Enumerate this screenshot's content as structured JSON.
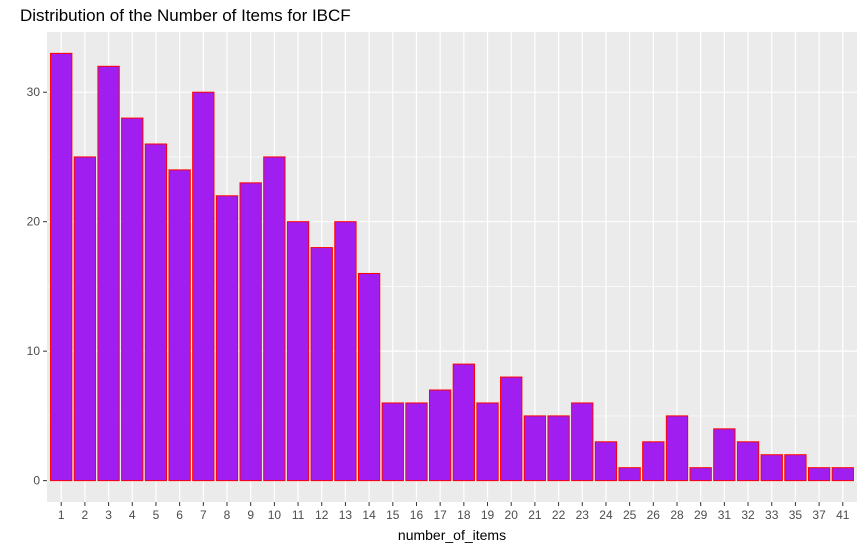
{
  "colors": {
    "panel_background": "#ebebeb",
    "grid": "#ffffff",
    "bar_fill": "#a01ff0",
    "bar_outline": "#ff0000"
  },
  "chart_data": {
    "type": "bar",
    "title": "Distribution of the Number of Items for IBCF",
    "xlabel": "number_of_items",
    "ylabel": "",
    "categories": [
      "1",
      "2",
      "3",
      "4",
      "5",
      "6",
      "7",
      "8",
      "9",
      "10",
      "11",
      "12",
      "13",
      "14",
      "15",
      "16",
      "17",
      "18",
      "19",
      "20",
      "21",
      "22",
      "23",
      "24",
      "25",
      "26",
      "28",
      "29",
      "31",
      "32",
      "33",
      "35",
      "37",
      "41"
    ],
    "values": [
      33,
      25,
      32,
      28,
      26,
      24,
      30,
      22,
      23,
      25,
      20,
      18,
      20,
      16,
      6,
      6,
      7,
      9,
      6,
      8,
      5,
      5,
      6,
      3,
      1,
      3,
      5,
      1,
      4,
      3,
      2,
      2,
      1,
      1
    ],
    "y_ticks": [
      0,
      10,
      20,
      30
    ],
    "ylim": [
      0,
      34.65
    ],
    "grid": true,
    "legend": "none"
  }
}
